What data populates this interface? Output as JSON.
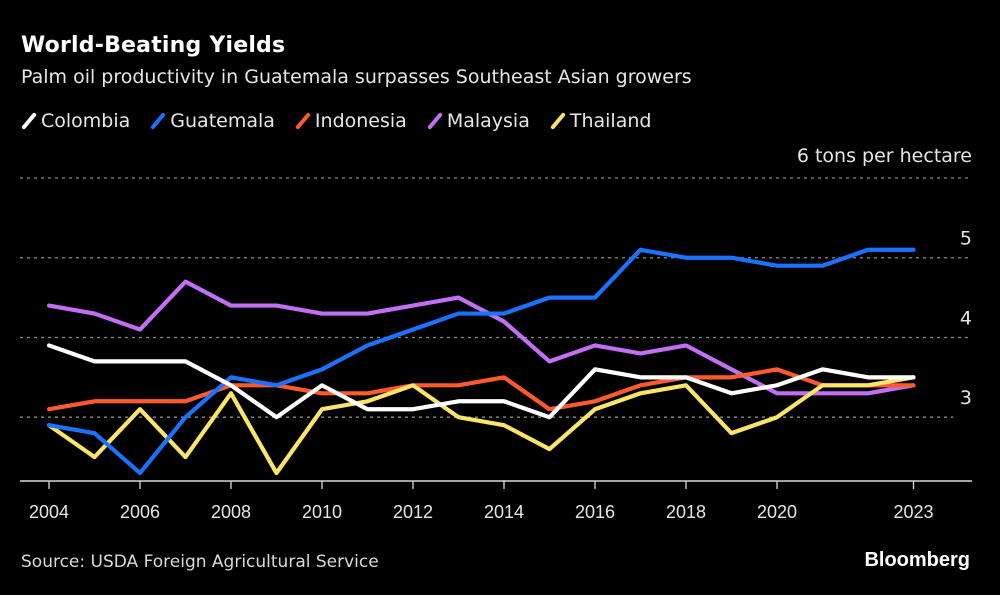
{
  "header": {
    "title": "World-Beating Yields",
    "subtitle": "Palm oil productivity in Guatemala surpasses Southeast Asian growers"
  },
  "footer": {
    "source": "Source: USDA Foreign Agricultural Service",
    "brand": "Bloomberg"
  },
  "chart_data": {
    "type": "line",
    "title": "World-Beating Yields",
    "subtitle": "Palm oil productivity in Guatemala surpasses Southeast Asian growers",
    "xlabel": "",
    "ylabel": "tons per hectare",
    "unit_label": "6 tons per hectare",
    "x": [
      2004,
      2005,
      2006,
      2007,
      2008,
      2009,
      2010,
      2011,
      2012,
      2013,
      2014,
      2015,
      2016,
      2017,
      2018,
      2019,
      2020,
      2021,
      2022,
      2023
    ],
    "x_ticks": [
      2004,
      2006,
      2008,
      2010,
      2012,
      2014,
      2016,
      2018,
      2020,
      2023
    ],
    "x_tick_labels": [
      "2004",
      "2006",
      "2008",
      "2010",
      "2012",
      "2014",
      "2016",
      "2018",
      "2020",
      "2023"
    ],
    "y_ticks": [
      3,
      4,
      5,
      6
    ],
    "y_tick_labels": [
      "3",
      "4",
      "5",
      "6 tons per hectare"
    ],
    "ylim": [
      2.2,
      6
    ],
    "xlim": [
      2003.35,
      2024.3
    ],
    "grid": true,
    "legend_position": "top-left",
    "series": [
      {
        "name": "Colombia",
        "color": "#ffffff",
        "values": [
          3.9,
          3.7,
          3.7,
          3.7,
          3.4,
          3.0,
          3.4,
          3.1,
          3.1,
          3.2,
          3.2,
          3.0,
          3.6,
          3.5,
          3.5,
          3.3,
          3.4,
          3.6,
          3.5,
          3.5
        ]
      },
      {
        "name": "Guatemala",
        "color": "#1a73ff",
        "values": [
          2.9,
          2.8,
          2.3,
          3.0,
          3.5,
          3.4,
          3.6,
          3.9,
          4.1,
          4.3,
          4.3,
          4.5,
          4.5,
          5.1,
          5.0,
          5.0,
          4.9,
          4.9,
          5.1,
          5.1
        ]
      },
      {
        "name": "Indonesia",
        "color": "#ff5a2c",
        "values": [
          3.1,
          3.2,
          3.2,
          3.2,
          3.4,
          3.4,
          3.3,
          3.3,
          3.4,
          3.4,
          3.5,
          3.1,
          3.2,
          3.4,
          3.5,
          3.5,
          3.6,
          3.4,
          3.4,
          3.4
        ]
      },
      {
        "name": "Malaysia",
        "color": "#c26ef5",
        "values": [
          4.4,
          4.3,
          4.1,
          4.7,
          4.4,
          4.4,
          4.3,
          4.3,
          4.4,
          4.5,
          4.2,
          3.7,
          3.9,
          3.8,
          3.9,
          3.6,
          3.3,
          3.3,
          3.3,
          3.4
        ]
      },
      {
        "name": "Thailand",
        "color": "#fbe46a",
        "values": [
          2.9,
          2.5,
          3.1,
          2.5,
          3.3,
          2.3,
          3.1,
          3.2,
          3.4,
          3.0,
          2.9,
          2.6,
          3.1,
          3.3,
          3.4,
          2.8,
          3.0,
          3.4,
          3.4,
          3.5
        ]
      }
    ]
  }
}
